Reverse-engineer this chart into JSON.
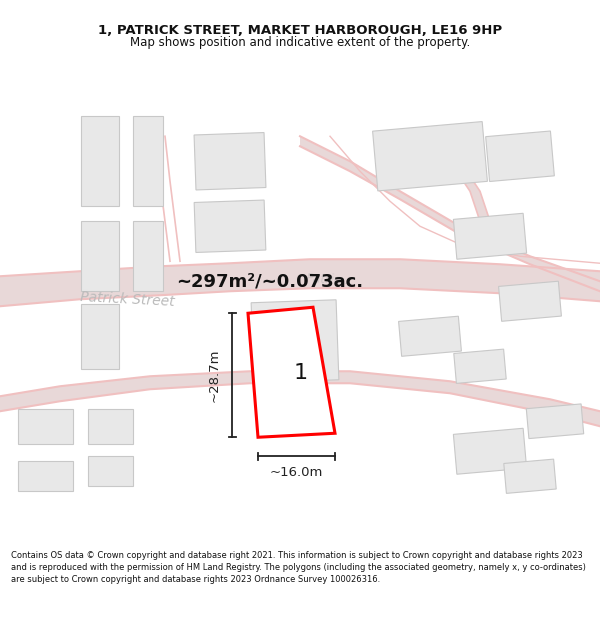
{
  "title_line1": "1, PATRICK STREET, MARKET HARBOROUGH, LE16 9HP",
  "title_line2": "Map shows position and indicative extent of the property.",
  "area_label": "~297m²/~0.073ac.",
  "plot_number": "1",
  "dim_height": "~28.7m",
  "dim_width": "~16.0m",
  "footer": "Contains OS data © Crown copyright and database right 2021. This information is subject to Crown copyright and database rights 2023 and is reproduced with the permission of HM Land Registry. The polygons (including the associated geometry, namely x, y co-ordinates) are subject to Crown copyright and database rights 2023 Ordnance Survey 100026316.",
  "map_bg": "#f5f5f5",
  "building_fill": "#e8e8e8",
  "building_edge": "#c8c8c8",
  "road_color": "#f0c0c0",
  "road_fill": "#e8d8d8",
  "plot_fill": "#ffffff",
  "plot_edge": "#ff0000",
  "dim_color": "#222222",
  "street_label_color": "#bbbbbb",
  "patrick_label_color": "#cccccc"
}
